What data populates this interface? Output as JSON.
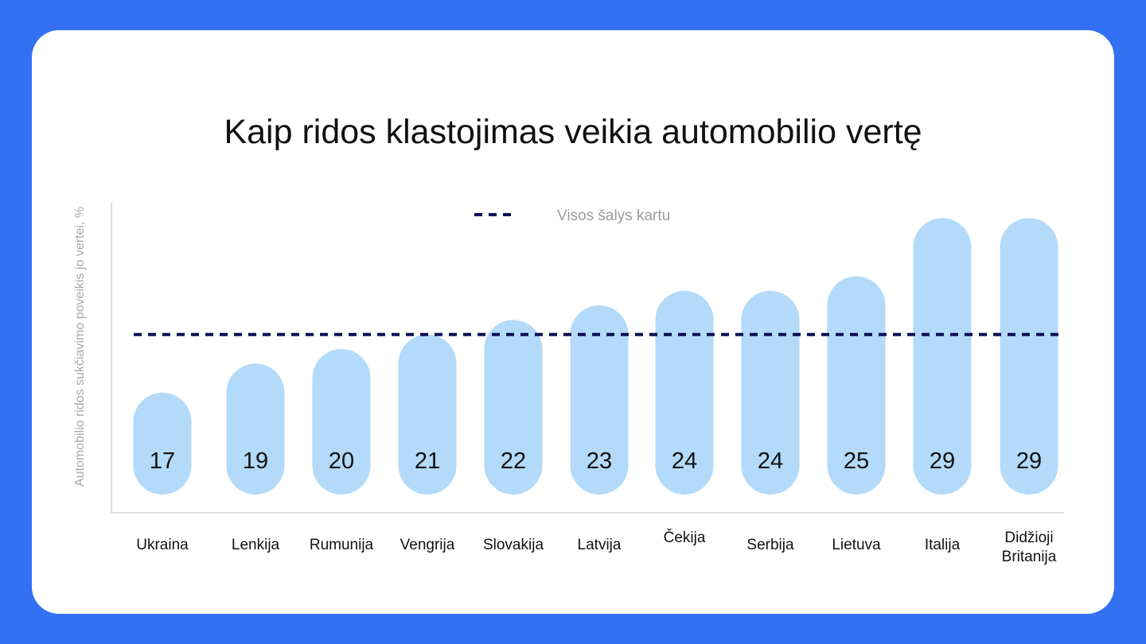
{
  "colors": {
    "background": "#3371f2",
    "card": "#ffffff",
    "bar": "#b3daf9",
    "average_line": "#0c0d52",
    "axis": "#d4d4d4"
  },
  "chart_data": {
    "type": "bar",
    "title": "Kaip ridos klastojimas veikia automobilio vertę",
    "ylabel": "Automobilio ridos sukčiavimo poveikis jo vertei, %",
    "xlabel": "",
    "categories": [
      "Ukraina",
      "Lenkija",
      "Rumunija",
      "Vengrija",
      "Slovakija",
      "Latvija",
      "Čekija",
      "Serbija",
      "Lietuva",
      "Italija",
      "Didžioji Britanija"
    ],
    "values": [
      17,
      19,
      20,
      21,
      22,
      23,
      24,
      24,
      25,
      29,
      29
    ],
    "data_labels": [
      "17",
      "19",
      "20",
      "21",
      "22",
      "23",
      "24",
      "24",
      "25",
      "29",
      "29"
    ],
    "reference_line": {
      "name": "Visos šalys kartu",
      "value": 21,
      "style": "dashed"
    },
    "legend": {
      "entries": [
        "Visos šalys kartu"
      ],
      "position": "top-center"
    },
    "ylim": [
      0,
      30
    ],
    "grid": false
  }
}
